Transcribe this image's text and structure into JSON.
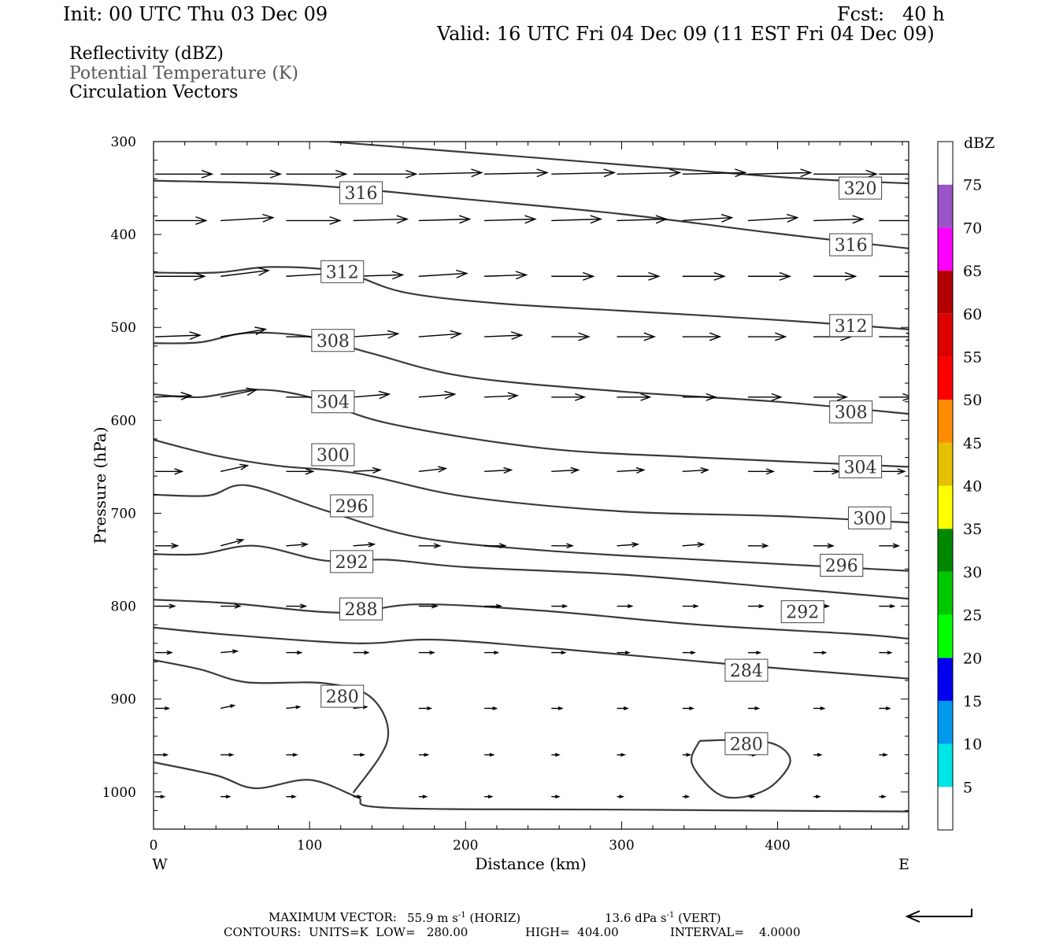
{
  "header": {
    "init": "Init: 00 UTC Thu 03 Dec 09",
    "fcst": "Fcst:   40 h",
    "valid": "Valid: 16 UTC Fri 04 Dec 09 (11 EST Fri 04 Dec 09)",
    "field1": "Reflectivity (dBZ)",
    "field2": "Potential Temperature (K)",
    "field3": "Circulation Vectors"
  },
  "footer": {
    "max_vector_label": "MAXIMUM VECTOR:",
    "max_vector_horiz": "55.9 m s",
    "horiz_tag": "(HORIZ)",
    "max_vector_vert": "13.6 dPa s",
    "vert_tag": "(VERT)",
    "exp": "-1",
    "contours": "CONTOURS:  UNITS=K  LOW=   280.00",
    "high": "HIGH=  404.00",
    "interval": "INTERVAL=    4.0000"
  },
  "colorbar": {
    "unit": "dBZ",
    "levels": [
      5,
      10,
      15,
      20,
      25,
      30,
      35,
      40,
      45,
      50,
      55,
      60,
      65,
      70,
      75
    ],
    "colors": [
      "#ffffff",
      "#00e5e5",
      "#0099ee",
      "#0000ee",
      "#00ff00",
      "#00c800",
      "#008800",
      "#ffff00",
      "#e5c000",
      "#ff8c00",
      "#ff0000",
      "#dd0000",
      "#b30000",
      "#ff00ff",
      "#9a55c8",
      "#ffffff"
    ]
  },
  "chart_data": {
    "type": "line",
    "title": "",
    "xlabel": "Distance (km)",
    "ylabel": "Pressure (hPa)",
    "xlim": [
      0,
      484
    ],
    "ylim": [
      300,
      1040
    ],
    "x_ticks": [
      0,
      100,
      200,
      300,
      400
    ],
    "y_ticks": [
      300,
      400,
      500,
      600,
      700,
      800,
      900,
      1000
    ],
    "x_end_labels": {
      "left": "W",
      "right": "E"
    },
    "contour_levels": [
      "280",
      "284",
      "288",
      "292",
      "296",
      "300",
      "304",
      "308",
      "312",
      "316",
      "320"
    ],
    "series": [
      {
        "label": "320",
        "pts": [
          [
            113,
            300
          ],
          [
            250,
            318
          ],
          [
            400,
            338
          ],
          [
            484,
            345
          ]
        ]
      },
      {
        "label": "316",
        "pts": [
          [
            0,
            342
          ],
          [
            100,
            347
          ],
          [
            200,
            362
          ],
          [
            300,
            378
          ],
          [
            400,
            399
          ],
          [
            484,
            415
          ]
        ]
      },
      {
        "label": "312",
        "pts": [
          [
            0,
            441
          ],
          [
            40,
            441
          ],
          [
            75,
            435
          ],
          [
            120,
            440
          ],
          [
            160,
            462
          ],
          [
            220,
            474
          ],
          [
            300,
            482
          ],
          [
            400,
            492
          ],
          [
            484,
            502
          ]
        ]
      },
      {
        "label": "308",
        "pts": [
          [
            0,
            517
          ],
          [
            30,
            516
          ],
          [
            60,
            506
          ],
          [
            100,
            510
          ],
          [
            140,
            528
          ],
          [
            200,
            553
          ],
          [
            300,
            569
          ],
          [
            400,
            580
          ],
          [
            484,
            593
          ]
        ]
      },
      {
        "label": "304",
        "pts": [
          [
            0,
            572
          ],
          [
            30,
            575
          ],
          [
            65,
            567
          ],
          [
            100,
            575
          ],
          [
            150,
            603
          ],
          [
            250,
            630
          ],
          [
            350,
            640
          ],
          [
            484,
            650
          ]
        ]
      },
      {
        "label": "300",
        "pts": [
          [
            0,
            621
          ],
          [
            40,
            638
          ],
          [
            80,
            649
          ],
          [
            130,
            657
          ],
          [
            200,
            682
          ],
          [
            300,
            698
          ],
          [
            400,
            703
          ],
          [
            484,
            710
          ]
        ]
      },
      {
        "label": "296",
        "pts": [
          [
            0,
            680
          ],
          [
            35,
            681
          ],
          [
            60,
            670
          ],
          [
            110,
            697
          ],
          [
            170,
            726
          ],
          [
            250,
            740
          ],
          [
            350,
            750
          ],
          [
            484,
            762
          ]
        ]
      },
      {
        "label": "292",
        "pts": [
          [
            0,
            744
          ],
          [
            30,
            744
          ],
          [
            65,
            735
          ],
          [
            110,
            751
          ],
          [
            150,
            750
          ],
          [
            200,
            758
          ],
          [
            300,
            766
          ],
          [
            400,
            780
          ],
          [
            484,
            792
          ]
        ]
      },
      {
        "label": "288",
        "pts": [
          [
            0,
            793
          ],
          [
            50,
            797
          ],
          [
            120,
            807
          ],
          [
            170,
            798
          ],
          [
            250,
            805
          ],
          [
            350,
            820
          ],
          [
            450,
            830
          ],
          [
            484,
            835
          ]
        ]
      },
      {
        "label": "284",
        "pts": [
          [
            0,
            823
          ],
          [
            50,
            831
          ],
          [
            130,
            840
          ],
          [
            180,
            836
          ],
          [
            260,
            846
          ],
          [
            380,
            864
          ],
          [
            484,
            878
          ]
        ]
      },
      {
        "label": "280",
        "pts": [
          [
            0,
            858
          ],
          [
            30,
            868
          ],
          [
            60,
            882
          ],
          [
            110,
            883
          ],
          [
            140,
            899
          ],
          [
            150,
            944
          ],
          [
            128,
            1001
          ]
        ]
      },
      {
        "label": "280",
        "pts": [
          [
            0,
            968
          ],
          [
            40,
            982
          ],
          [
            65,
            996
          ],
          [
            100,
            987
          ],
          [
            130,
            1005
          ],
          [
            150,
            1017
          ],
          [
            300,
            1019
          ],
          [
            484,
            1021
          ]
        ]
      },
      {
        "label": "280",
        "pts": [
          [
            350,
            945
          ],
          [
            345,
            969
          ],
          [
            360,
            1000
          ],
          [
            375,
            1006
          ],
          [
            395,
            995
          ],
          [
            408,
            968
          ],
          [
            400,
            950
          ],
          [
            380,
            944
          ],
          [
            350,
            945
          ]
        ]
      }
    ],
    "contour_labels": [
      {
        "text": "320",
        "x": 453,
        "y": 350
      },
      {
        "text": "316",
        "x": 133,
        "y": 355
      },
      {
        "text": "316",
        "x": 447,
        "y": 411
      },
      {
        "text": "312",
        "x": 121,
        "y": 440
      },
      {
        "text": "312",
        "x": 447,
        "y": 498
      },
      {
        "text": "308",
        "x": 115,
        "y": 514
      },
      {
        "text": "308",
        "x": 447,
        "y": 591
      },
      {
        "text": "304",
        "x": 115,
        "y": 580
      },
      {
        "text": "304",
        "x": 453,
        "y": 650
      },
      {
        "text": "300",
        "x": 115,
        "y": 637
      },
      {
        "text": "300",
        "x": 459,
        "y": 705
      },
      {
        "text": "296",
        "x": 127,
        "y": 692
      },
      {
        "text": "296",
        "x": 441,
        "y": 756
      },
      {
        "text": "292",
        "x": 127,
        "y": 752
      },
      {
        "text": "292",
        "x": 416,
        "y": 806
      },
      {
        "text": "288",
        "x": 133,
        "y": 803
      },
      {
        "text": "284",
        "x": 380,
        "y": 869
      },
      {
        "text": "280",
        "x": 121,
        "y": 897
      },
      {
        "text": "280",
        "x": 380,
        "y": 948
      }
    ],
    "vectors": {
      "p_levels": [
        335,
        385,
        445,
        510,
        575,
        655,
        735,
        800,
        850,
        910,
        960,
        1005
      ],
      "x_positions": [
        0,
        42,
        84,
        127,
        169,
        211,
        254,
        296,
        338,
        380,
        422,
        464
      ],
      "u": [
        [
          38,
          40,
          40,
          42,
          42,
          42,
          42,
          42,
          42,
          42,
          42,
          42
        ],
        [
          34,
          35,
          36,
          36,
          34,
          34,
          33,
          33,
          33,
          33,
          33,
          33
        ],
        [
          33,
          32,
          32,
          33,
          32,
          28,
          28,
          28,
          28,
          28,
          28,
          28
        ],
        [
          30,
          30,
          31,
          30,
          28,
          25,
          25,
          25,
          25,
          25,
          25,
          25
        ],
        [
          24,
          24,
          24,
          24,
          24,
          22,
          22,
          22,
          22,
          22,
          22,
          22
        ],
        [
          18,
          18,
          18,
          18,
          18,
          18,
          18,
          18,
          17,
          17,
          17,
          17
        ],
        [
          15,
          15,
          14,
          14,
          14,
          14,
          14,
          14,
          14,
          13,
          13,
          13
        ],
        [
          13,
          13,
          13,
          12,
          12,
          11,
          10,
          10,
          10,
          10,
          10,
          10
        ],
        [
          11,
          11,
          10,
          10,
          10,
          9,
          9,
          8,
          8,
          8,
          8,
          8
        ],
        [
          9,
          9,
          9,
          9,
          8,
          8,
          7,
          7,
          7,
          7,
          7,
          7
        ],
        [
          8,
          8,
          7,
          7,
          6,
          6,
          5,
          5,
          5,
          5,
          5,
          5
        ],
        [
          6,
          6,
          6,
          5,
          5,
          5,
          5,
          4,
          4,
          4,
          4,
          4
        ]
      ],
      "w": [
        [
          0,
          0,
          0,
          0,
          -1,
          -1,
          -1,
          -1,
          -1,
          -1,
          0,
          0
        ],
        [
          0,
          -2,
          0,
          -1,
          -1,
          -1,
          -1,
          -1,
          -2,
          -2,
          -1,
          0
        ],
        [
          0,
          -4,
          -2,
          -1,
          -2,
          -1,
          0,
          0,
          0,
          0,
          0,
          0
        ],
        [
          -1,
          -5,
          0,
          -2,
          -2,
          -1,
          0,
          0,
          0,
          0,
          0,
          0
        ],
        [
          -1,
          -5,
          0,
          -2,
          -2,
          -1,
          0,
          0,
          0,
          0,
          0,
          0
        ],
        [
          0,
          -4,
          0,
          -1,
          -2,
          -1,
          -1,
          -1,
          -1,
          0,
          0,
          0
        ],
        [
          0,
          -4,
          -1,
          -1,
          0,
          0,
          0,
          -1,
          -1,
          0,
          0,
          0
        ],
        [
          0,
          0,
          0,
          0,
          0,
          0,
          0,
          0,
          0,
          0,
          0,
          0
        ],
        [
          0,
          -1,
          0,
          0,
          0,
          0,
          0,
          0,
          0,
          0,
          0,
          0
        ],
        [
          0,
          -2,
          -1,
          -1,
          0,
          0,
          0,
          0,
          0,
          0,
          0,
          0
        ],
        [
          0,
          0,
          0,
          0,
          0,
          0,
          0,
          0,
          0,
          0,
          0,
          0
        ],
        [
          0,
          0,
          0,
          0,
          0,
          0,
          0,
          0,
          0,
          0,
          0,
          0
        ]
      ]
    }
  }
}
